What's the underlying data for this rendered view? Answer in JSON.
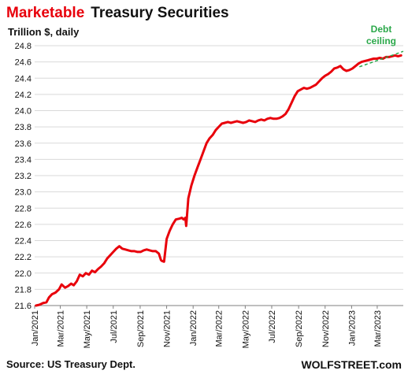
{
  "header": {
    "title_accent": "Marketable",
    "title_rest": "Treasury Securities",
    "unit": "Trillion $, daily"
  },
  "footer": {
    "source": "Source: US Treasury Dept.",
    "brand": "WOLFSTREET.com"
  },
  "colors": {
    "title_accent": "#e8000b",
    "series": "#e8000b",
    "annotation": "#2ba84a",
    "grid": "#d9d9d9"
  },
  "chart_data": {
    "type": "line",
    "title": "Marketable Treasury Securities",
    "ylabel": "Trillion $, daily",
    "ylim": [
      21.6,
      24.8
    ],
    "yticks": [
      21.6,
      21.8,
      22.0,
      22.2,
      22.4,
      22.6,
      22.8,
      23.0,
      23.2,
      23.4,
      23.6,
      23.8,
      24.0,
      24.2,
      24.4,
      24.6,
      24.8
    ],
    "ytick_labels": [
      "21.6",
      "21.8",
      "22.0",
      "22.2",
      "22.4",
      "22.6",
      "22.8",
      "23.0",
      "23.2",
      "23.4",
      "23.6",
      "23.8",
      "24.0",
      "24.2",
      "24.4",
      "24.6",
      "24.8"
    ],
    "xlim": [
      "2021-01-01",
      "2023-04-30"
    ],
    "xticks": [
      "2021-01-01",
      "2021-03-01",
      "2021-05-01",
      "2021-07-01",
      "2021-09-01",
      "2021-11-01",
      "2022-01-01",
      "2022-03-01",
      "2022-05-01",
      "2022-07-01",
      "2022-09-01",
      "2022-11-01",
      "2023-01-01",
      "2023-03-01"
    ],
    "xtick_labels": [
      "Jan/2021",
      "Mar/2021",
      "May/2021",
      "Jul/2021",
      "Sep/2021",
      "Nov/2021",
      "Jan/2022",
      "Mar/2022",
      "May/2022",
      "Jul/2022",
      "Sep/2022",
      "Nov/2022",
      "Jan/2023",
      "Mar/2023"
    ],
    "grid": "horizontal",
    "series": [
      {
        "x": [
          "2021-01-04",
          "2021-01-12",
          "2021-01-20",
          "2021-01-28",
          "2021-02-03",
          "2021-02-10",
          "2021-02-18",
          "2021-02-26",
          "2021-03-04",
          "2021-03-12",
          "2021-03-19",
          "2021-03-26",
          "2021-04-01",
          "2021-04-08",
          "2021-04-15",
          "2021-04-22",
          "2021-04-29",
          "2021-05-06",
          "2021-05-13",
          "2021-05-20",
          "2021-05-27",
          "2021-06-03",
          "2021-06-10",
          "2021-06-17",
          "2021-06-24",
          "2021-07-01",
          "2021-07-08",
          "2021-07-15",
          "2021-07-22",
          "2021-07-29",
          "2021-08-05",
          "2021-08-12",
          "2021-08-19",
          "2021-08-26",
          "2021-09-02",
          "2021-09-09",
          "2021-09-16",
          "2021-09-23",
          "2021-09-30",
          "2021-10-07",
          "2021-10-14",
          "2021-10-19",
          "2021-10-21",
          "2021-10-26",
          "2021-11-01",
          "2021-11-08",
          "2021-11-15",
          "2021-11-22",
          "2021-11-30",
          "2021-12-06",
          "2021-12-10",
          "2021-12-14",
          "2021-12-16",
          "2021-12-21",
          "2021-12-28",
          "2022-01-04",
          "2022-01-11",
          "2022-01-18",
          "2022-01-25",
          "2022-02-01",
          "2022-02-08",
          "2022-02-15",
          "2022-02-22",
          "2022-03-01",
          "2022-03-08",
          "2022-03-15",
          "2022-03-22",
          "2022-03-29",
          "2022-04-05",
          "2022-04-12",
          "2022-04-19",
          "2022-04-26",
          "2022-05-03",
          "2022-05-10",
          "2022-05-17",
          "2022-05-24",
          "2022-05-31",
          "2022-06-07",
          "2022-06-14",
          "2022-06-21",
          "2022-06-28",
          "2022-07-05",
          "2022-07-12",
          "2022-07-19",
          "2022-07-26",
          "2022-08-02",
          "2022-08-09",
          "2022-08-16",
          "2022-08-23",
          "2022-08-30",
          "2022-09-06",
          "2022-09-13",
          "2022-09-20",
          "2022-09-27",
          "2022-10-04",
          "2022-10-11",
          "2022-10-18",
          "2022-10-25",
          "2022-11-01",
          "2022-11-08",
          "2022-11-15",
          "2022-11-22",
          "2022-11-29",
          "2022-12-06",
          "2022-12-13",
          "2022-12-20",
          "2022-12-27",
          "2023-01-03",
          "2023-01-10",
          "2023-01-17",
          "2023-01-24",
          "2023-01-31",
          "2023-02-07",
          "2023-02-14",
          "2023-02-21",
          "2023-02-28",
          "2023-03-07",
          "2023-03-14",
          "2023-03-21",
          "2023-03-28",
          "2023-04-04",
          "2023-04-11",
          "2023-04-18",
          "2023-04-25"
        ],
        "values": [
          21.6,
          21.61,
          21.63,
          21.64,
          21.7,
          21.74,
          21.76,
          21.8,
          21.86,
          21.82,
          21.84,
          21.87,
          21.85,
          21.9,
          21.98,
          21.96,
          22.0,
          21.98,
          22.03,
          22.01,
          22.05,
          22.08,
          22.12,
          22.18,
          22.22,
          22.26,
          22.3,
          22.33,
          22.3,
          22.29,
          22.28,
          22.27,
          22.27,
          22.26,
          22.26,
          22.28,
          22.29,
          22.28,
          22.27,
          22.27,
          22.24,
          22.16,
          22.15,
          22.14,
          22.42,
          22.52,
          22.6,
          22.66,
          22.67,
          22.68,
          22.66,
          22.68,
          22.58,
          22.92,
          23.08,
          23.2,
          23.3,
          23.4,
          23.5,
          23.6,
          23.66,
          23.7,
          23.76,
          23.8,
          23.84,
          23.85,
          23.86,
          23.85,
          23.86,
          23.87,
          23.86,
          23.85,
          23.86,
          23.88,
          23.87,
          23.86,
          23.88,
          23.89,
          23.88,
          23.9,
          23.91,
          23.9,
          23.9,
          23.91,
          23.93,
          23.96,
          24.02,
          24.1,
          24.18,
          24.24,
          24.26,
          24.28,
          24.27,
          24.28,
          24.3,
          24.32,
          24.36,
          24.4,
          24.43,
          24.45,
          24.48,
          24.52,
          24.53,
          24.55,
          24.51,
          24.49,
          24.5,
          24.52,
          24.55,
          24.58,
          24.6,
          24.61,
          24.62,
          24.63,
          24.64,
          24.64,
          24.65,
          24.64,
          24.66,
          24.66,
          24.67,
          24.68,
          24.67,
          24.68
        ]
      }
    ],
    "annotation": {
      "text": [
        "Debt",
        "ceiling"
      ],
      "line_from": {
        "x": "2023-01-19",
        "y": 24.54
      },
      "line_to": {
        "x": "2023-04-30",
        "y": 24.73
      }
    }
  }
}
